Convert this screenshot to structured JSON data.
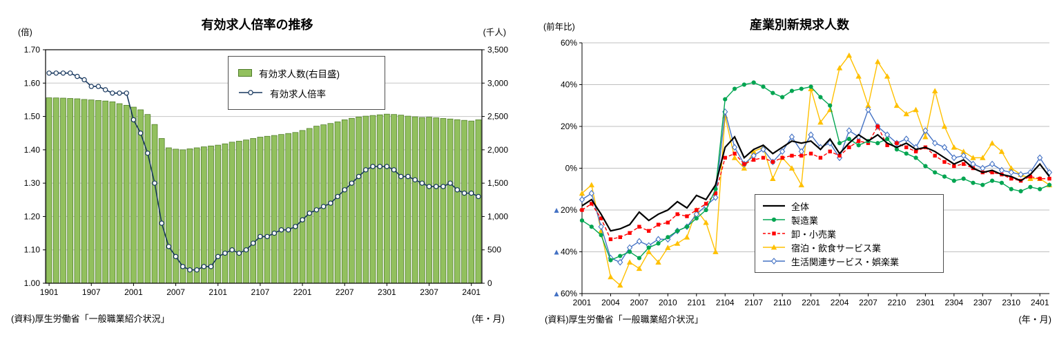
{
  "left_chart": {
    "title": "有効求人倍率の推移",
    "left_axis_unit": "(倍)",
    "right_axis_unit": "(千人)",
    "x_axis_unit": "(年・月)",
    "source": "(資料)厚生労働省「一般職業紹介状況」"
  },
  "right_chart": {
    "title": "産業別新規求人数",
    "y_axis_unit": "(前年比)",
    "x_axis_unit": "(年・月)",
    "source": "(資料)厚生労働省「一般職業紹介状況」"
  },
  "chart_data": [
    {
      "type": "bar+line",
      "title": "有効求人倍率の推移",
      "x": [
        "1901",
        "1902",
        "1903",
        "1904",
        "1905",
        "1906",
        "1907",
        "1908",
        "1909",
        "1910",
        "1911",
        "1912",
        "2001",
        "2002",
        "2003",
        "2004",
        "2005",
        "2006",
        "2007",
        "2008",
        "2009",
        "2010",
        "2011",
        "2012",
        "2101",
        "2102",
        "2103",
        "2104",
        "2105",
        "2106",
        "2107",
        "2108",
        "2109",
        "2110",
        "2111",
        "2112",
        "2201",
        "2202",
        "2203",
        "2204",
        "2205",
        "2206",
        "2207",
        "2208",
        "2209",
        "2210",
        "2211",
        "2212",
        "2301",
        "2302",
        "2303",
        "2304",
        "2305",
        "2306",
        "2307",
        "2308",
        "2309",
        "2310",
        "2311",
        "2312",
        "2401",
        "2402"
      ],
      "x_tick_indices": [
        0,
        6,
        12,
        18,
        24,
        30,
        36,
        42,
        48,
        54,
        60
      ],
      "left_axis": {
        "unit": "(倍)",
        "lim": [
          1.0,
          1.7
        ],
        "ticks": [
          "1.00",
          "1.10",
          "1.20",
          "1.30",
          "1.40",
          "1.50",
          "1.60",
          "1.70"
        ]
      },
      "right_axis": {
        "unit": "(千人)",
        "lim": [
          0,
          3500
        ],
        "ticks": [
          "0",
          "500",
          "1,000",
          "1,500",
          "2,000",
          "2,500",
          "3,000",
          "3,500"
        ]
      },
      "bar_series": {
        "name": "有効求人数(右目盛)",
        "axis": "right",
        "color": "#92C05E",
        "border_color": "#4E7B28",
        "values": [
          2780,
          2778,
          2775,
          2770,
          2765,
          2755,
          2748,
          2740,
          2732,
          2720,
          2692,
          2668,
          2640,
          2600,
          2530,
          2380,
          2170,
          2030,
          2010,
          2000,
          2015,
          2030,
          2045,
          2058,
          2070,
          2090,
          2115,
          2130,
          2148,
          2170,
          2190,
          2203,
          2215,
          2230,
          2245,
          2260,
          2290,
          2320,
          2355,
          2375,
          2395,
          2420,
          2450,
          2472,
          2492,
          2505,
          2515,
          2525,
          2535,
          2530,
          2520,
          2505,
          2495,
          2485,
          2490,
          2480,
          2470,
          2462,
          2452,
          2442,
          2432,
          2450
        ]
      },
      "line_series": {
        "name": "有効求人倍率",
        "axis": "left",
        "color": "#17375E",
        "marker": "circle-open",
        "values": [
          1.63,
          1.63,
          1.63,
          1.63,
          1.62,
          1.61,
          1.59,
          1.59,
          1.58,
          1.57,
          1.57,
          1.57,
          1.49,
          1.45,
          1.39,
          1.3,
          1.18,
          1.11,
          1.08,
          1.05,
          1.04,
          1.04,
          1.05,
          1.05,
          1.08,
          1.09,
          1.1,
          1.09,
          1.1,
          1.12,
          1.14,
          1.14,
          1.15,
          1.16,
          1.16,
          1.17,
          1.19,
          1.21,
          1.22,
          1.23,
          1.24,
          1.26,
          1.28,
          1.3,
          1.32,
          1.34,
          1.35,
          1.35,
          1.35,
          1.34,
          1.32,
          1.32,
          1.31,
          1.3,
          1.29,
          1.29,
          1.29,
          1.3,
          1.28,
          1.27,
          1.27,
          1.26
        ]
      }
    },
    {
      "type": "line",
      "title": "産業別新規求人数",
      "x": [
        "2001",
        "2002",
        "2003",
        "2004",
        "2005",
        "2006",
        "2007",
        "2008",
        "2009",
        "2010",
        "2011",
        "2012",
        "2101",
        "2102",
        "2103",
        "2104",
        "2105",
        "2106",
        "2107",
        "2108",
        "2109",
        "2110",
        "2111",
        "2112",
        "2201",
        "2202",
        "2203",
        "2204",
        "2205",
        "2206",
        "2207",
        "2208",
        "2209",
        "2210",
        "2211",
        "2212",
        "2301",
        "2302",
        "2303",
        "2304",
        "2305",
        "2306",
        "2307",
        "2308",
        "2309",
        "2310",
        "2311",
        "2312",
        "2401",
        "2402"
      ],
      "x_tick_indices": [
        0,
        3,
        6,
        9,
        12,
        15,
        18,
        21,
        24,
        27,
        30,
        33,
        36,
        39,
        42,
        45,
        48
      ],
      "ylim": [
        -60,
        60
      ],
      "yticks": [
        {
          "value": 60,
          "label": "60%"
        },
        {
          "value": 40,
          "label": "40%"
        },
        {
          "value": 20,
          "label": "20%"
        },
        {
          "value": 0,
          "label": "0%"
        },
        {
          "value": -20,
          "label": "▲20%"
        },
        {
          "value": -40,
          "label": "▲40%"
        },
        {
          "value": -60,
          "label": "▲60%"
        }
      ],
      "negative_tick_color": "#4472C4",
      "grid_color": "#BFBFBF",
      "series": [
        {
          "name": "全体",
          "color": "#000000",
          "marker": "none",
          "dash": false,
          "values": [
            -18,
            -15,
            -22,
            -30,
            -29,
            -27,
            -21,
            -25,
            -22,
            -20,
            -16,
            -19,
            -13,
            -15,
            -8,
            10,
            15,
            5,
            9,
            11,
            7,
            10,
            13,
            12,
            13,
            9,
            14,
            7,
            12,
            16,
            13,
            16,
            12,
            10,
            12,
            9,
            10,
            8,
            5,
            2,
            4,
            0,
            -2,
            -1,
            -3,
            -4,
            -6,
            -3,
            2,
            -4
          ]
        },
        {
          "name": "製造業",
          "color": "#00A551",
          "marker": "circle",
          "dash": false,
          "values": [
            -25,
            -28,
            -32,
            -44,
            -42,
            -40,
            -43,
            -38,
            -36,
            -33,
            -30,
            -28,
            -24,
            -20,
            -10,
            33,
            38,
            40,
            41,
            39,
            36,
            34,
            37,
            38,
            39,
            34,
            30,
            12,
            14,
            11,
            13,
            12,
            14,
            9,
            7,
            5,
            1,
            -2,
            -4,
            -6,
            -5,
            -7,
            -8,
            -6,
            -7,
            -10,
            -11,
            -9,
            -10,
            -8
          ]
        },
        {
          "name": "卸・小売業",
          "color": "#FF0000",
          "marker": "square",
          "dash": true,
          "values": [
            -20,
            -17,
            -24,
            -34,
            -33,
            -31,
            -28,
            -30,
            -27,
            -26,
            -22,
            -23,
            -20,
            -17,
            -12,
            5,
            7,
            2,
            4,
            5,
            3,
            5,
            6,
            6,
            7,
            5,
            8,
            6,
            10,
            13,
            12,
            20,
            11,
            12,
            10,
            8,
            10,
            6,
            3,
            1,
            2,
            0,
            -2,
            -2,
            -3,
            -5,
            -6,
            -4,
            -5,
            -5
          ]
        },
        {
          "name": "宿泊・飲食サービス業",
          "color": "#FFC000",
          "marker": "triangle",
          "dash": false,
          "values": [
            -12,
            -8,
            -30,
            -52,
            -56,
            -45,
            -48,
            -40,
            -45,
            -38,
            -36,
            -33,
            -20,
            -26,
            -40,
            25,
            5,
            0,
            8,
            10,
            -5,
            5,
            0,
            -8,
            38,
            22,
            28,
            48,
            54,
            44,
            30,
            51,
            44,
            30,
            26,
            28,
            15,
            37,
            20,
            10,
            8,
            5,
            5,
            12,
            8,
            0,
            -3,
            -5,
            -5,
            -8
          ]
        },
        {
          "name": "生活関連サービス・娯楽業",
          "color": "#4472C4",
          "marker": "diamond-open",
          "dash": false,
          "values": [
            -15,
            -12,
            -28,
            -43,
            -45,
            -38,
            -35,
            -37,
            -34,
            -34,
            -30,
            -28,
            -22,
            -18,
            -14,
            27,
            10,
            2,
            6,
            9,
            3,
            8,
            15,
            8,
            16,
            10,
            12,
            5,
            18,
            15,
            28,
            20,
            16,
            12,
            14,
            10,
            18,
            12,
            10,
            5,
            6,
            2,
            0,
            2,
            -1,
            -2,
            -3,
            -2,
            5,
            -2
          ]
        }
      ]
    }
  ]
}
